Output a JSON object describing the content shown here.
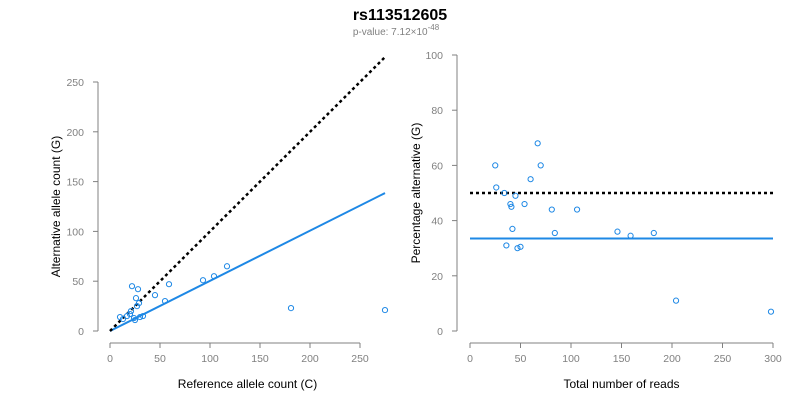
{
  "figure": {
    "title": "rs113512605",
    "subtitle_prefix": "p-value: 7.12×10",
    "subtitle_exponent": "-48"
  },
  "colors": {
    "series": "#1e88e5",
    "reference_line": "#000000",
    "axis": "#808080"
  },
  "chart_data": [
    {
      "type": "scatter",
      "title": "",
      "xlabel": "Reference allele count (C)",
      "ylabel": "Alternative allele count (G)",
      "xlim": [
        0,
        275
      ],
      "ylim": [
        0,
        250
      ],
      "xticks": [
        0,
        50,
        100,
        150,
        200,
        250
      ],
      "yticks": [
        0,
        50,
        100,
        150,
        200,
        250
      ],
      "points": [
        {
          "x": 10,
          "y": 14
        },
        {
          "x": 13,
          "y": 12
        },
        {
          "x": 17,
          "y": 15
        },
        {
          "x": 20,
          "y": 17
        },
        {
          "x": 21,
          "y": 20
        },
        {
          "x": 22,
          "y": 45
        },
        {
          "x": 24,
          "y": 13
        },
        {
          "x": 25,
          "y": 11
        },
        {
          "x": 26,
          "y": 33
        },
        {
          "x": 27,
          "y": 25
        },
        {
          "x": 28,
          "y": 42
        },
        {
          "x": 29,
          "y": 28
        },
        {
          "x": 30,
          "y": 14
        },
        {
          "x": 33,
          "y": 15
        },
        {
          "x": 45,
          "y": 36
        },
        {
          "x": 55,
          "y": 30
        },
        {
          "x": 59,
          "y": 47
        },
        {
          "x": 93,
          "y": 51
        },
        {
          "x": 104,
          "y": 55
        },
        {
          "x": 117,
          "y": 65
        },
        {
          "x": 181,
          "y": 23
        },
        {
          "x": 275,
          "y": 21
        }
      ],
      "lines": [
        {
          "style": "solid",
          "color": "#1e88e5",
          "x": [
            0,
            275
          ],
          "y": [
            0,
            138.5
          ]
        },
        {
          "style": "dotted",
          "color": "#000000",
          "x": [
            0,
            275
          ],
          "y": [
            0,
            275
          ]
        }
      ]
    },
    {
      "type": "scatter",
      "title": "",
      "xlabel": "Total number of reads",
      "ylabel": "Percentage alternative (G)",
      "xlim": [
        0,
        300
      ],
      "ylim": [
        0,
        100
      ],
      "xticks": [
        0,
        50,
        100,
        150,
        200,
        250,
        300
      ],
      "yticks": [
        0,
        20,
        40,
        60,
        80,
        100
      ],
      "points": [
        {
          "x": 25,
          "y": 60
        },
        {
          "x": 26,
          "y": 52
        },
        {
          "x": 34,
          "y": 50
        },
        {
          "x": 36,
          "y": 31
        },
        {
          "x": 40,
          "y": 46
        },
        {
          "x": 41,
          "y": 45
        },
        {
          "x": 42,
          "y": 37
        },
        {
          "x": 45,
          "y": 49
        },
        {
          "x": 47,
          "y": 30
        },
        {
          "x": 50,
          "y": 30.5
        },
        {
          "x": 54,
          "y": 46
        },
        {
          "x": 60,
          "y": 55
        },
        {
          "x": 67,
          "y": 68
        },
        {
          "x": 70,
          "y": 60
        },
        {
          "x": 81,
          "y": 44
        },
        {
          "x": 84,
          "y": 35.5
        },
        {
          "x": 106,
          "y": 44
        },
        {
          "x": 146,
          "y": 36
        },
        {
          "x": 159,
          "y": 34.5
        },
        {
          "x": 182,
          "y": 35.5
        },
        {
          "x": 204,
          "y": 11
        },
        {
          "x": 298,
          "y": 7
        }
      ],
      "lines": [
        {
          "style": "solid",
          "color": "#1e88e5",
          "x": [
            0,
            300
          ],
          "y": [
            33.5,
            33.5
          ]
        },
        {
          "style": "dotted",
          "color": "#000000",
          "x": [
            0,
            300
          ],
          "y": [
            50,
            50
          ]
        }
      ]
    }
  ]
}
